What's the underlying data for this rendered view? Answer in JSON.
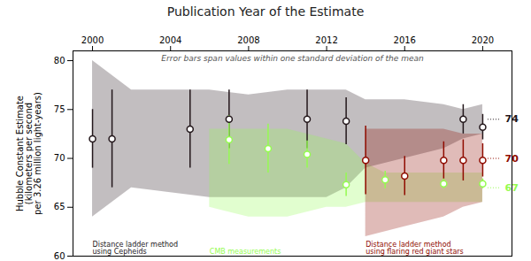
{
  "chart_data": {
    "type": "scatter",
    "title": "Publication Year of the Estimate",
    "ylabel": "Hubble Constant Estimate\n(kilometers per second\nper 3.26 million light-years)",
    "note": "Error bars span values within one standard deviation of the mean",
    "xlim": [
      1999,
      2021.5
    ],
    "ylim": [
      60,
      81
    ],
    "xticks": [
      2000,
      2004,
      2008,
      2012,
      2016,
      2020
    ],
    "yticks": [
      60,
      65,
      70,
      75,
      80
    ],
    "marker": "circle",
    "series": [
      {
        "name": "Distance ladder method\nusing Cepheids",
        "x": [
          2000,
          2001,
          2005,
          2007,
          2011,
          2013,
          2019,
          2020
        ],
        "values": [
          72,
          72,
          73,
          74,
          74,
          73.8,
          74,
          73.2
        ],
        "yerr_lo": [
          3,
          5,
          4,
          3,
          3,
          2.4,
          1.5,
          1.3
        ],
        "yerr_hi": [
          3,
          5,
          4,
          3,
          3,
          2.4,
          1.5,
          1.3
        ],
        "band": {
          "x": [
            2000,
            2002,
            2006,
            2008,
            2010,
            2012,
            2013,
            2014,
            2016,
            2018,
            2019,
            2020
          ],
          "upper": [
            80,
            77,
            77,
            76.5,
            77,
            77,
            77,
            76,
            76,
            75.5,
            75,
            75.5
          ],
          "lower": [
            64,
            67,
            66,
            66,
            66,
            66,
            67,
            69,
            70,
            71,
            72,
            72.5
          ]
        },
        "end_label": {
          "x": 2021.0,
          "y": 74,
          "text": "74"
        }
      },
      {
        "name": "CMB measurements",
        "x": [
          2007,
          2009,
          2011,
          2013,
          2015,
          2018,
          2020
        ],
        "values": [
          71.9,
          71,
          70.4,
          67.3,
          67.8,
          67.4,
          67.4
        ],
        "yerr_lo": [
          2.5,
          2.5,
          1.4,
          1.2,
          0.9,
          0.5,
          0.5
        ],
        "yerr_hi": [
          2.5,
          2.5,
          1.4,
          1.2,
          0.9,
          0.5,
          0.5
        ],
        "band": {
          "x": [
            2006,
            2008,
            2010,
            2012,
            2013,
            2014,
            2015,
            2016,
            2018,
            2019,
            2020
          ],
          "upper": [
            73,
            73,
            73,
            72,
            71.5,
            69.5,
            68.5,
            68.5,
            68.5,
            68.5,
            68.5
          ],
          "lower": [
            65,
            64,
            64,
            65,
            65,
            65.5,
            65.5,
            65.5,
            65.5,
            65.5,
            65.5
          ]
        },
        "end_label": {
          "x": 2021.0,
          "y": 67,
          "text": "67"
        }
      },
      {
        "name": "Distance ladder method\nusing flaring red giant stars",
        "x": [
          2014,
          2016,
          2018,
          2019,
          2020
        ],
        "values": [
          69.8,
          68.2,
          69.8,
          69.8,
          69.8
        ],
        "yerr_lo": [
          3.5,
          2.0,
          1.9,
          2.1,
          1.7
        ],
        "yerr_hi": [
          3.5,
          2.0,
          1.9,
          2.1,
          1.7
        ],
        "band": {
          "x": [
            2014,
            2016,
            2018,
            2019,
            2020
          ],
          "upper": [
            73,
            73,
            73,
            72.5,
            72.5
          ],
          "lower": [
            62,
            63,
            64,
            65,
            65.5
          ]
        },
        "end_label": {
          "x": 2021.0,
          "y": 70,
          "text": "70"
        }
      }
    ]
  }
}
